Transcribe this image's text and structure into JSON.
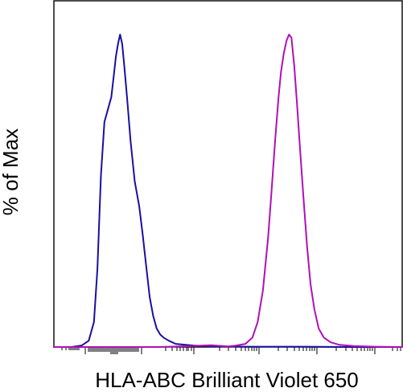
{
  "chart_data": {
    "type": "line",
    "chart_kind": "flow cytometry histogram overlay",
    "title": "",
    "xlabel": "HLA-ABC Brilliant Violet 650",
    "ylabel": "% of Max",
    "x_scale": "biexponential (logicle)",
    "x_tick_labels": false,
    "y_tick_labels": false,
    "grid": false,
    "legend": "none",
    "series": [
      {
        "color": "#1a0fa0",
        "peak_y": 100,
        "points": [
          [
            0.0,
            0
          ],
          [
            0.05,
            0
          ],
          [
            0.08,
            0.5
          ],
          [
            0.1,
            2
          ],
          [
            0.115,
            8
          ],
          [
            0.125,
            25
          ],
          [
            0.135,
            55
          ],
          [
            0.145,
            72
          ],
          [
            0.155,
            76
          ],
          [
            0.165,
            80
          ],
          [
            0.172,
            87
          ],
          [
            0.178,
            93
          ],
          [
            0.184,
            97
          ],
          [
            0.19,
            100
          ],
          [
            0.196,
            97
          ],
          [
            0.202,
            90
          ],
          [
            0.21,
            80
          ],
          [
            0.22,
            66
          ],
          [
            0.232,
            53
          ],
          [
            0.245,
            45
          ],
          [
            0.255,
            36
          ],
          [
            0.265,
            26
          ],
          [
            0.275,
            16
          ],
          [
            0.285,
            10
          ],
          [
            0.295,
            6
          ],
          [
            0.305,
            4
          ],
          [
            0.315,
            3
          ],
          [
            0.33,
            2
          ],
          [
            0.35,
            1
          ],
          [
            0.4,
            0.5
          ],
          [
            0.45,
            0.2
          ],
          [
            0.55,
            0.1
          ],
          [
            0.7,
            0.1
          ],
          [
            0.85,
            0
          ],
          [
            1.0,
            0
          ]
        ]
      },
      {
        "color": "#b010b8",
        "peak_y": 100,
        "points": [
          [
            0.0,
            0
          ],
          [
            0.3,
            0
          ],
          [
            0.4,
            0.3
          ],
          [
            0.45,
            0.6
          ],
          [
            0.5,
            0.2
          ],
          [
            0.52,
            0.4
          ],
          [
            0.55,
            1
          ],
          [
            0.57,
            3
          ],
          [
            0.585,
            8
          ],
          [
            0.6,
            18
          ],
          [
            0.615,
            35
          ],
          [
            0.625,
            50
          ],
          [
            0.635,
            66
          ],
          [
            0.645,
            80
          ],
          [
            0.652,
            88
          ],
          [
            0.66,
            94
          ],
          [
            0.668,
            98
          ],
          [
            0.675,
            100
          ],
          [
            0.682,
            99
          ],
          [
            0.69,
            90
          ],
          [
            0.698,
            78
          ],
          [
            0.707,
            63
          ],
          [
            0.717,
            47
          ],
          [
            0.727,
            32
          ],
          [
            0.737,
            20
          ],
          [
            0.748,
            12
          ],
          [
            0.76,
            6
          ],
          [
            0.775,
            3
          ],
          [
            0.795,
            1.5
          ],
          [
            0.82,
            0.7
          ],
          [
            0.86,
            0.3
          ],
          [
            0.92,
            0.1
          ],
          [
            1.0,
            0
          ]
        ]
      }
    ]
  }
}
